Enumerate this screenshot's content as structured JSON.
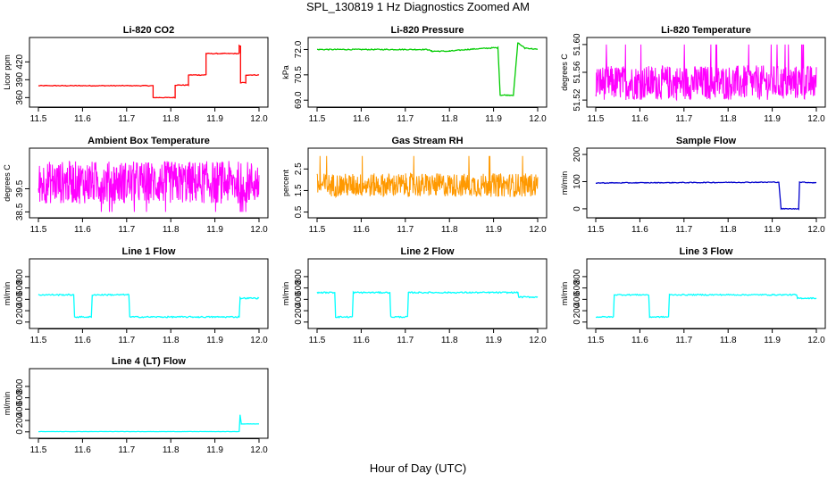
{
  "main_title": "SPL_130819 1 Hz Diagnostics Zoomed AM",
  "x_axis_label": "Hour of Day (UTC)",
  "chart_data": [
    {
      "type": "line",
      "title": "Li-820 CO2",
      "ylabel": "Licor ppm",
      "color": "#ff0000",
      "xlim": [
        11.5,
        12.0
      ],
      "ylim": [
        350,
        455
      ],
      "yticks": [
        "360",
        "390",
        "420"
      ],
      "ytick_values": [
        360,
        390,
        420
      ],
      "xticks": [
        "11.5",
        "11.6",
        "11.7",
        "11.8",
        "11.9",
        "12.0"
      ],
      "xtick_values": [
        11.5,
        11.6,
        11.7,
        11.8,
        11.9,
        12.0
      ],
      "noise": 0.6,
      "segments": [
        [
          11.5,
          380
        ],
        [
          11.76,
          380
        ],
        [
          11.76,
          360
        ],
        [
          11.81,
          360
        ],
        [
          11.81,
          381
        ],
        [
          11.84,
          381
        ],
        [
          11.84,
          398
        ],
        [
          11.88,
          398
        ],
        [
          11.88,
          434
        ],
        [
          11.955,
          434
        ],
        [
          11.955,
          447
        ],
        [
          11.958,
          447
        ],
        [
          11.958,
          385
        ],
        [
          11.97,
          385
        ],
        [
          11.97,
          398
        ],
        [
          12.0,
          398
        ]
      ]
    },
    {
      "type": "line",
      "title": "Li-820 Pressure",
      "ylabel": "kPa",
      "color": "#00cc00",
      "xlim": [
        11.5,
        12.0
      ],
      "ylim": [
        68.8,
        72.5
      ],
      "yticks": [
        "69.0",
        "70.5",
        "72.0"
      ],
      "ytick_values": [
        69.0,
        70.5,
        72.0
      ],
      "xticks": [
        "11.5",
        "11.6",
        "11.7",
        "11.8",
        "11.9",
        "12.0"
      ],
      "xtick_values": [
        11.5,
        11.6,
        11.7,
        11.8,
        11.9,
        12.0
      ],
      "noise": 0.03,
      "segments": [
        [
          11.5,
          72.0
        ],
        [
          11.75,
          72.0
        ],
        [
          11.76,
          71.9
        ],
        [
          11.8,
          71.9
        ],
        [
          11.84,
          72.0
        ],
        [
          11.9,
          72.1
        ],
        [
          11.91,
          72.1
        ],
        [
          11.915,
          69.3
        ],
        [
          11.945,
          69.3
        ],
        [
          11.955,
          72.4
        ],
        [
          11.97,
          72.1
        ],
        [
          12.0,
          72.0
        ]
      ]
    },
    {
      "type": "noise",
      "title": "Li-820 Temperature",
      "ylabel": "degrees C",
      "color": "#ff00ff",
      "xlim": [
        11.5,
        12.0
      ],
      "ylim": [
        51.515,
        51.605
      ],
      "yticks": [
        "51.52",
        "51.56",
        "51.60"
      ],
      "ytick_values": [
        51.52,
        51.56,
        51.6
      ],
      "xticks": [
        "11.5",
        "11.6",
        "11.7",
        "11.8",
        "11.9",
        "12.0"
      ],
      "xtick_values": [
        11.5,
        11.6,
        11.7,
        11.8,
        11.9,
        12.0
      ],
      "band": [
        51.52,
        51.57
      ],
      "spike": 51.6
    },
    {
      "type": "noise",
      "title": "Ambient Box Temperature",
      "ylabel": "degrees C",
      "color": "#ff00ff",
      "xlim": [
        11.5,
        12.0
      ],
      "ylim": [
        38.4,
        41.1
      ],
      "yticks": [
        "38.5",
        "39.5"
      ],
      "ytick_values": [
        38.5,
        39.5
      ],
      "xticks": [
        "11.5",
        "11.6",
        "11.7",
        "11.8",
        "11.9",
        "12.0"
      ],
      "xtick_values": [
        11.5,
        11.6,
        11.7,
        11.8,
        11.9,
        12.0
      ],
      "band": [
        38.85,
        40.7
      ],
      "spike": 38.5
    },
    {
      "type": "noise",
      "title": "Gas Stream RH",
      "ylabel": "percent",
      "color": "#ff9900",
      "xlim": [
        11.5,
        12.0
      ],
      "ylim": [
        0.4,
        3.3
      ],
      "yticks": [
        "0.5",
        "1.5",
        "2.5"
      ],
      "ytick_values": [
        0.5,
        1.5,
        2.5
      ],
      "xticks": [
        "11.5",
        "11.6",
        "11.7",
        "11.8",
        "11.9",
        "12.0"
      ],
      "xtick_values": [
        11.5,
        11.6,
        11.7,
        11.8,
        11.9,
        12.0
      ],
      "band": [
        1.2,
        2.3
      ],
      "spike": 3.1
    },
    {
      "type": "line",
      "title": "Sample Flow",
      "ylabel": "ml/min",
      "color": "#0000cc",
      "xlim": [
        11.5,
        12.0
      ],
      "ylim": [
        -20,
        210
      ],
      "yticks": [
        "0",
        "100",
        "200"
      ],
      "ytick_values": [
        0,
        100,
        200
      ],
      "xticks": [
        "11.5",
        "11.6",
        "11.7",
        "11.8",
        "11.9",
        "12.0"
      ],
      "xtick_values": [
        11.5,
        11.6,
        11.7,
        11.8,
        11.9,
        12.0
      ],
      "noise": 1.5,
      "segments": [
        [
          11.5,
          95
        ],
        [
          11.915,
          98
        ],
        [
          11.92,
          0
        ],
        [
          11.96,
          0
        ],
        [
          11.962,
          98
        ],
        [
          12.0,
          96
        ]
      ]
    },
    {
      "type": "line",
      "title": "Line 1 Flow",
      "ylabel": "ml/min",
      "color": "#00ffff",
      "xlim": [
        11.5,
        12.0
      ],
      "ylim": [
        -50,
        1050
      ],
      "yticks": [
        "0",
        "200",
        "400",
        "600",
        "800"
      ],
      "ytick_values": [
        0,
        200,
        400,
        600,
        800
      ],
      "xticks": [
        "11.5",
        "11.6",
        "11.7",
        "11.8",
        "11.9",
        "12.0"
      ],
      "xtick_values": [
        11.5,
        11.6,
        11.7,
        11.8,
        11.9,
        12.0
      ],
      "noise": 12,
      "segments": [
        [
          11.5,
          480
        ],
        [
          11.58,
          480
        ],
        [
          11.582,
          90
        ],
        [
          11.62,
          90
        ],
        [
          11.622,
          480
        ],
        [
          11.705,
          480
        ],
        [
          11.707,
          90
        ],
        [
          11.955,
          90
        ],
        [
          11.957,
          420
        ],
        [
          12.0,
          420
        ]
      ]
    },
    {
      "type": "line",
      "title": "Line 2 Flow",
      "ylabel": "ml/min",
      "color": "#00ffff",
      "xlim": [
        11.5,
        12.0
      ],
      "ylim": [
        -50,
        1050
      ],
      "yticks": [
        "0",
        "200",
        "400",
        "600",
        "800"
      ],
      "ytick_values": [
        0,
        200,
        400,
        600,
        800
      ],
      "xticks": [
        "11.5",
        "11.6",
        "11.7",
        "11.8",
        "11.9",
        "12.0"
      ],
      "xtick_values": [
        11.5,
        11.6,
        11.7,
        11.8,
        11.9,
        12.0
      ],
      "noise": 12,
      "segments": [
        [
          11.5,
          520
        ],
        [
          11.54,
          520
        ],
        [
          11.542,
          90
        ],
        [
          11.58,
          90
        ],
        [
          11.582,
          520
        ],
        [
          11.665,
          520
        ],
        [
          11.667,
          90
        ],
        [
          11.705,
          90
        ],
        [
          11.707,
          520
        ],
        [
          11.955,
          520
        ],
        [
          11.957,
          440
        ],
        [
          12.0,
          440
        ]
      ]
    },
    {
      "type": "line",
      "title": "Line 3 Flow",
      "ylabel": "ml/min",
      "color": "#00ffff",
      "xlim": [
        11.5,
        12.0
      ],
      "ylim": [
        -50,
        1050
      ],
      "yticks": [
        "0",
        "200",
        "400",
        "600",
        "800"
      ],
      "ytick_values": [
        0,
        200,
        400,
        600,
        800
      ],
      "xticks": [
        "11.5",
        "11.6",
        "11.7",
        "11.8",
        "11.9",
        "12.0"
      ],
      "xtick_values": [
        11.5,
        11.6,
        11.7,
        11.8,
        11.9,
        12.0
      ],
      "noise": 10,
      "segments": [
        [
          11.5,
          90
        ],
        [
          11.54,
          90
        ],
        [
          11.542,
          480
        ],
        [
          11.62,
          480
        ],
        [
          11.622,
          90
        ],
        [
          11.665,
          90
        ],
        [
          11.667,
          480
        ],
        [
          11.955,
          480
        ],
        [
          11.957,
          420
        ],
        [
          12.0,
          420
        ]
      ]
    },
    {
      "type": "line",
      "title": "Line 4 (LT) Flow",
      "ylabel": "ml/min",
      "color": "#00ffff",
      "xlim": [
        11.5,
        12.0
      ],
      "ylim": [
        -50,
        1050
      ],
      "yticks": [
        "0",
        "200",
        "400",
        "600",
        "800"
      ],
      "ytick_values": [
        0,
        200,
        400,
        600,
        800
      ],
      "xticks": [
        "11.5",
        "11.6",
        "11.7",
        "11.8",
        "11.9",
        "12.0"
      ],
      "xtick_values": [
        11.5,
        11.6,
        11.7,
        11.8,
        11.9,
        12.0
      ],
      "noise": 2,
      "segments": [
        [
          11.5,
          5
        ],
        [
          11.955,
          5
        ],
        [
          11.957,
          300
        ],
        [
          11.96,
          140
        ],
        [
          12.0,
          140
        ]
      ]
    }
  ]
}
